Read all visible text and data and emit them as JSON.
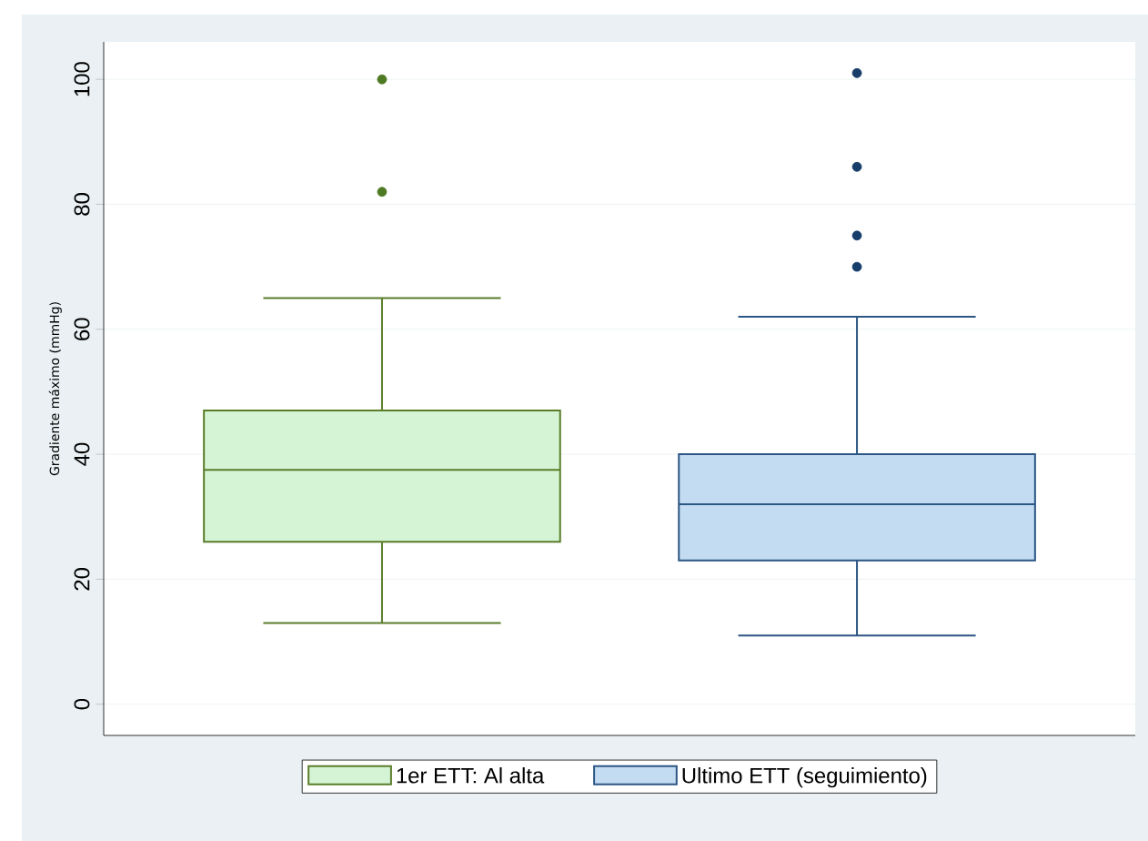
{
  "chart_data": {
    "type": "box",
    "ylabel": "Gradiente máximo (mmHg)",
    "categories": [
      null,
      null
    ],
    "ylim": [
      -5,
      106
    ],
    "yticks": [
      0,
      20,
      40,
      60,
      80,
      100
    ],
    "grid": "y",
    "legend": "bottom",
    "series": [
      {
        "name": "1er ETT: Al alta",
        "color": "#d5f4d5",
        "boxes": [
          {
            "low": 13,
            "q1": 26,
            "median": 37.5,
            "q3": 47,
            "high": 65,
            "outliers": [
              82,
              100
            ]
          },
          null
        ]
      },
      {
        "name": "Ultimo ETT (seguimiento)",
        "color": "#c3dcf2",
        "boxes": [
          null,
          {
            "low": 11,
            "q1": 23,
            "median": 32,
            "q3": 40,
            "high": 62,
            "outliers": [
              70,
              75,
              86,
              101
            ]
          }
        ]
      }
    ]
  }
}
